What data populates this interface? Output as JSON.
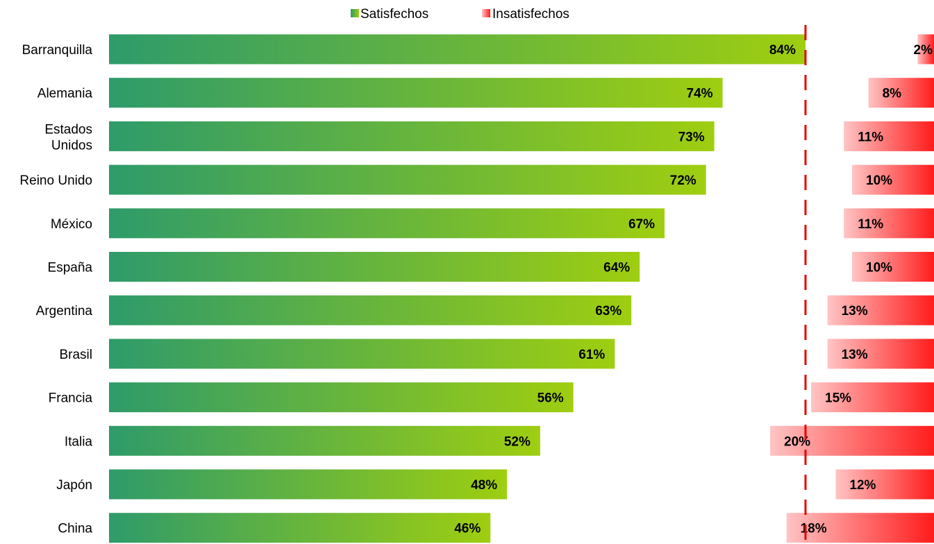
{
  "chart_data": {
    "type": "bar",
    "orientation": "horizontal",
    "categories": [
      "Barranquilla",
      "Alemania",
      "Estados Unidos",
      "Reino Unido",
      "México",
      "España",
      "Argentina",
      "Brasil",
      "Francia",
      "Italia",
      "Japón",
      "China"
    ],
    "series": [
      {
        "name": "Satisfechos",
        "values": [
          84,
          74,
          73,
          72,
          67,
          64,
          63,
          61,
          56,
          52,
          48,
          46
        ],
        "labels": [
          "84%",
          "74%",
          "73%",
          "72%",
          "67%",
          "64%",
          "63%",
          "61%",
          "56%",
          "52%",
          "48%",
          "46%"
        ],
        "color_start": "#2e9b6a",
        "color_end": "#9fce10"
      },
      {
        "name": "Insatisfechos",
        "values": [
          2,
          8,
          11,
          10,
          11,
          10,
          13,
          13,
          15,
          20,
          12,
          18
        ],
        "labels": [
          "2%",
          "8%",
          "11%",
          "10%",
          "11%",
          "10%",
          "13%",
          "13%",
          "15%",
          "20%",
          "12%",
          "18%"
        ],
        "color_start": "#ffc4c4",
        "color_end": "#ff1c1c"
      }
    ],
    "reference_line": {
      "value": 84,
      "style": "dashed",
      "color": "#e60000"
    },
    "legend": {
      "position": "top-center",
      "entries": [
        "Satisfechos",
        "Insatisfechos"
      ]
    },
    "title": "",
    "xlabel": "",
    "ylabel": "",
    "grid": false
  }
}
